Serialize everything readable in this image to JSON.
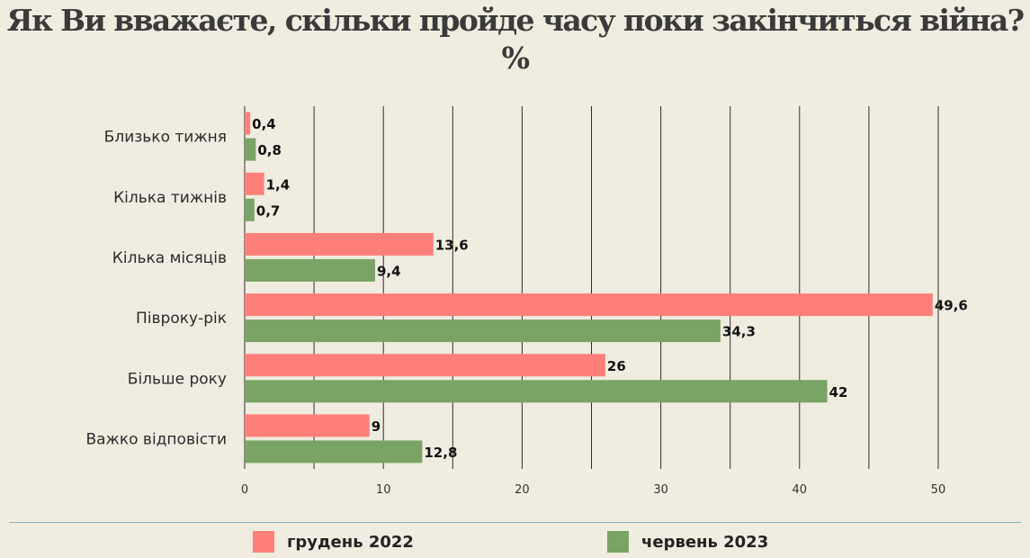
{
  "chart_data": {
    "type": "bar",
    "orientation": "horizontal",
    "title": "Як Ви вважаєте, скільки пройде часу поки закінчиться війна? %",
    "categories": [
      "Близько тижня",
      "Кілька тижнів",
      "Кілька місяців",
      "Півроку-рік",
      "Більше року",
      "Важко відповісти"
    ],
    "series": [
      {
        "name": "грудень 2022",
        "color": "#ff7f7b",
        "values": [
          0.4,
          1.4,
          13.6,
          49.6,
          26,
          9
        ],
        "labels": [
          "0,4",
          "1,4",
          "13,6",
          "49,6",
          "26",
          "9"
        ]
      },
      {
        "name": "червень 2023",
        "color": "#7aa366",
        "values": [
          0.8,
          0.7,
          9.4,
          34.3,
          42,
          12.8
        ],
        "labels": [
          "0,8",
          "0,7",
          "9,4",
          "34,3",
          "42",
          "12,8"
        ]
      }
    ],
    "xlim": [
      0,
      50
    ],
    "xticks": [
      "0",
      "10",
      "20",
      "30",
      "40",
      "50"
    ],
    "grid": true,
    "legend": "bottom"
  }
}
